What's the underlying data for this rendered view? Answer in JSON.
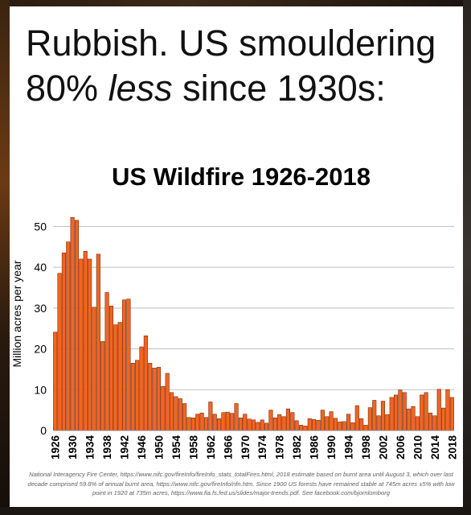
{
  "headline": {
    "line1": "Rubbish. US smouldering",
    "line2_before": "80% ",
    "line2_emphasis": "less",
    "line2_after": " since 1930s:"
  },
  "footnote": "National Interagency Fire Center, https://www.nifc.gov/fireInfo/fireInfo_stats_totalFires.html, 2018 estimate based on burnt area until August 3, which over last decade comprised 59.8% of annual burnt area, https://www.nifc.gov/fireInfo/nfn.htm. Since 1900 US forests have remained stable at 745m acres ±5% with low point in 1920 at 735m acres, https://www.fia.fs.fed.us/slides/major-trends.pdf. See facebook.com/bjornlomborg",
  "colors": {
    "bar_fill": "#F26522",
    "bar_stroke": "#7A2A08",
    "grid": "#BFBFBF"
  },
  "chart_data": {
    "type": "bar",
    "title": "US Wildfire 1926-2018",
    "ylabel": "Million acres per year",
    "xlabel": "",
    "ylim": [
      0,
      55
    ],
    "yticks": [
      0,
      10,
      20,
      30,
      40,
      50
    ],
    "x_tick_labels": [
      "1926",
      "1930",
      "1934",
      "1938",
      "1942",
      "1946",
      "1950",
      "1954",
      "1958",
      "1962",
      "1966",
      "1970",
      "1974",
      "1978",
      "1982",
      "1986",
      "1990",
      "1994",
      "1998",
      "2002",
      "2006",
      "2010",
      "2014",
      "2018"
    ],
    "grid": true,
    "legend": "none",
    "categories": [
      1926,
      1927,
      1928,
      1929,
      1930,
      1931,
      1932,
      1933,
      1934,
      1935,
      1936,
      1937,
      1938,
      1939,
      1940,
      1941,
      1942,
      1943,
      1944,
      1945,
      1946,
      1947,
      1948,
      1949,
      1950,
      1951,
      1952,
      1953,
      1954,
      1955,
      1956,
      1957,
      1958,
      1959,
      1960,
      1961,
      1962,
      1963,
      1964,
      1965,
      1966,
      1967,
      1968,
      1969,
      1970,
      1971,
      1972,
      1973,
      1974,
      1975,
      1976,
      1977,
      1978,
      1979,
      1980,
      1981,
      1982,
      1983,
      1984,
      1985,
      1986,
      1987,
      1988,
      1989,
      1990,
      1991,
      1992,
      1993,
      1994,
      1995,
      1996,
      1997,
      1998,
      1999,
      2000,
      2001,
      2002,
      2003,
      2004,
      2005,
      2006,
      2007,
      2008,
      2009,
      2010,
      2011,
      2012,
      2013,
      2014,
      2015,
      2016,
      2017,
      2018
    ],
    "values": [
      24.1,
      38.5,
      43.5,
      46.2,
      52.2,
      51.5,
      42,
      43.9,
      42,
      30.2,
      43.2,
      21.8,
      33.8,
      30.5,
      25.9,
      26.5,
      32,
      32.2,
      16.5,
      17.2,
      20.5,
      23.2,
      16.5,
      15.3,
      15.5,
      10.8,
      14,
      9.3,
      8.3,
      7.8,
      6.6,
      3.2,
      3.1,
      4,
      4.3,
      3.2,
      7,
      4,
      2.9,
      4.4,
      4.5,
      4.2,
      6.6,
      3.1,
      4,
      2.8,
      2.6,
      2,
      2.6,
      1.8,
      5,
      3.1,
      3.9,
      3.4,
      5.3,
      4.4,
      2.4,
      1.3,
      1.1,
      2.9,
      2.7,
      2.5,
      5,
      3.4,
      4.6,
      3,
      2.1,
      2.2,
      4,
      1.9,
      6.1,
      2.9,
      1.3,
      5.6,
      7.4,
      3.6,
      7.2,
      3.9,
      8.1,
      8.7,
      9.9,
      9.3,
      5.3,
      5.9,
      3.4,
      8.7,
      9.3,
      4.3,
      3.6,
      10.1,
      5.5,
      10,
      8.1
    ]
  }
}
